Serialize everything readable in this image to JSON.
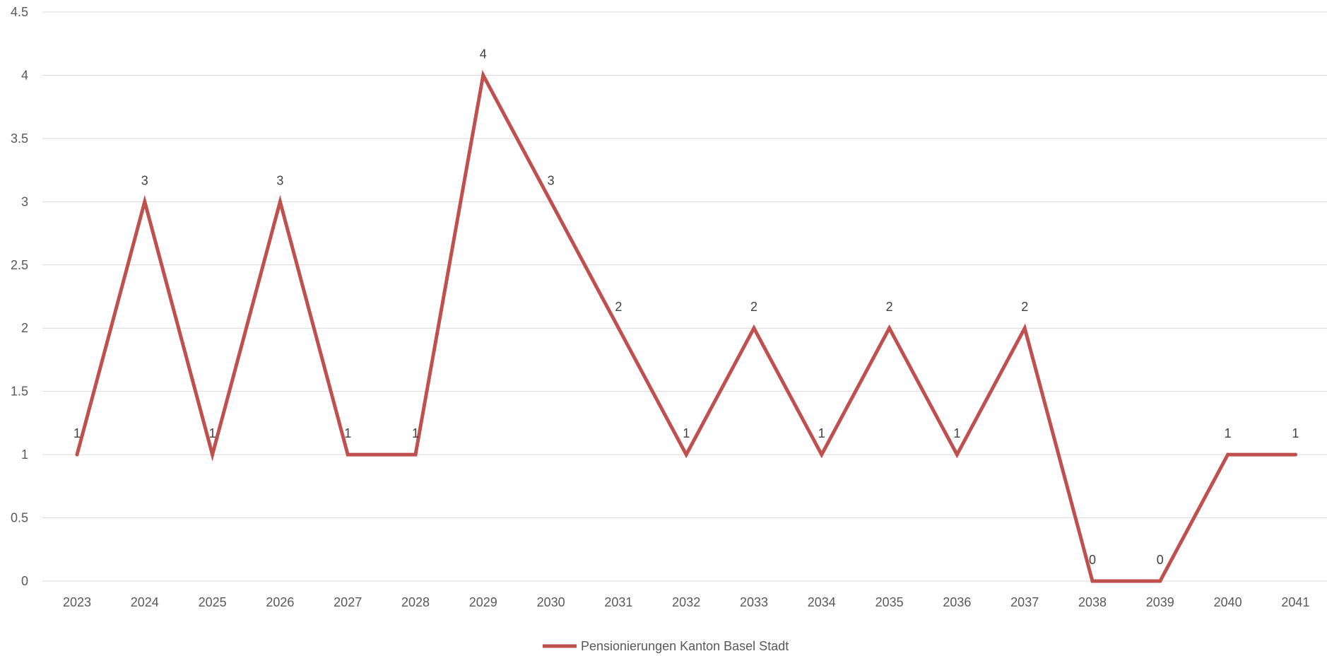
{
  "chart_data": {
    "type": "line",
    "title": "",
    "xlabel": "",
    "ylabel": "",
    "categories": [
      "2023",
      "2024",
      "2025",
      "2026",
      "2027",
      "2028",
      "2029",
      "2030",
      "2031",
      "2032",
      "2033",
      "2034",
      "2035",
      "2036",
      "2037",
      "2038",
      "2039",
      "2040",
      "2041"
    ],
    "series": [
      {
        "name": "Pensionierungen Kanton Basel Stadt",
        "values": [
          1,
          3,
          1,
          3,
          1,
          1,
          4,
          3,
          2,
          1,
          2,
          1,
          2,
          1,
          2,
          0,
          0,
          1,
          1
        ],
        "color": "#c0504d"
      }
    ],
    "y_ticks": [
      "0",
      "0.5",
      "1",
      "1.5",
      "2",
      "2.5",
      "3",
      "3.5",
      "4",
      "4.5"
    ],
    "ylim": [
      0,
      4.5
    ],
    "grid": true,
    "gridline_color": "#d9d9d9",
    "data_labels": true,
    "legend_position": "bottom"
  }
}
